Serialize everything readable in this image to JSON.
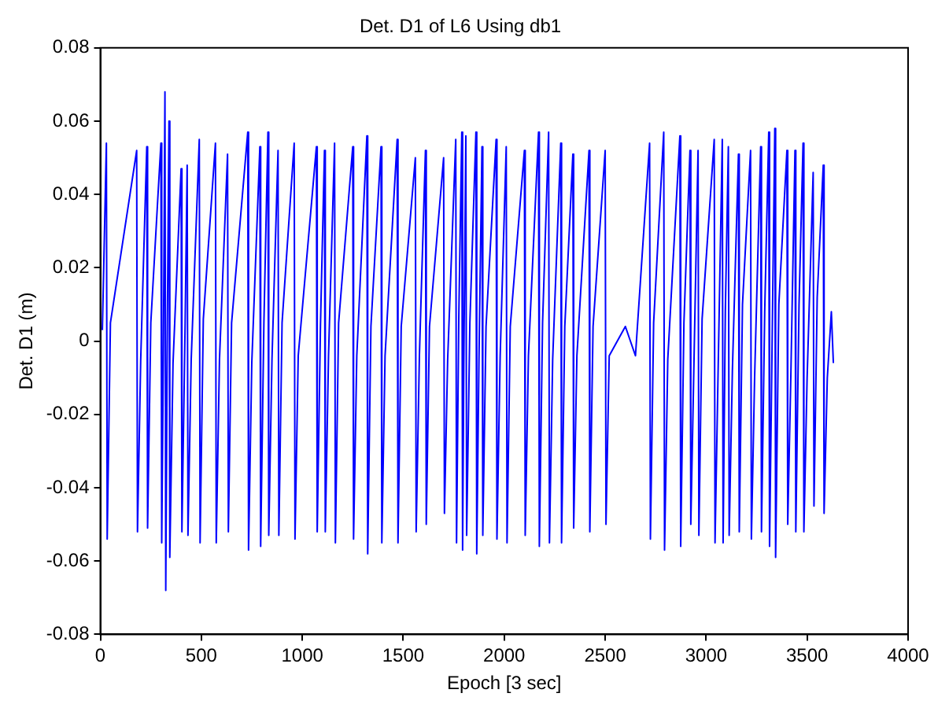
{
  "chart_data": {
    "type": "line",
    "title": "Det. D1 of L6 Using db1",
    "xlabel": "Epoch [3 sec]",
    "ylabel": "Det. D1 (m)",
    "xlim": [
      0,
      4000
    ],
    "xticks": [
      0,
      500,
      1000,
      1500,
      2000,
      2500,
      3000,
      3500,
      4000
    ],
    "ylim": [
      -0.08,
      0.08
    ],
    "yticks": [
      -0.08,
      -0.06,
      -0.04,
      -0.02,
      0,
      0.02,
      0.04,
      0.06,
      0.08
    ],
    "grid": false,
    "legend": false,
    "series": [
      {
        "color": "#0000ff",
        "x": [
          10,
          30,
          34,
          50,
          180,
          184,
          200,
          230,
          234,
          250,
          300,
          304,
          312,
          320,
          324,
          332,
          340,
          344,
          360,
          400,
          404,
          420,
          430,
          434,
          450,
          490,
          494,
          510,
          570,
          574,
          590,
          630,
          634,
          650,
          730,
          734,
          750,
          790,
          794,
          810,
          830,
          834,
          850,
          880,
          884,
          900,
          960,
          964,
          980,
          1070,
          1074,
          1090,
          1110,
          1114,
          1130,
          1160,
          1164,
          1180,
          1250,
          1254,
          1270,
          1320,
          1324,
          1340,
          1390,
          1394,
          1410,
          1470,
          1474,
          1490,
          1560,
          1564,
          1580,
          1610,
          1614,
          1630,
          1700,
          1704,
          1720,
          1760,
          1764,
          1775,
          1790,
          1794,
          1800,
          1810,
          1814,
          1830,
          1860,
          1864,
          1875,
          1890,
          1894,
          1910,
          1960,
          1964,
          1980,
          2010,
          2014,
          2030,
          2100,
          2104,
          2120,
          2170,
          2174,
          2190,
          2220,
          2224,
          2240,
          2280,
          2284,
          2300,
          2340,
          2344,
          2360,
          2420,
          2424,
          2440,
          2500,
          2504,
          2520,
          2600,
          2650,
          2720,
          2724,
          2740,
          2790,
          2794,
          2810,
          2870,
          2874,
          2890,
          2920,
          2924,
          2940,
          2960,
          2964,
          2980,
          3040,
          3044,
          3060,
          3080,
          3084,
          3095,
          3110,
          3114,
          3130,
          3160,
          3164,
          3180,
          3220,
          3224,
          3240,
          3270,
          3274,
          3290,
          3310,
          3314,
          3325,
          3340,
          3344,
          3360,
          3400,
          3404,
          3420,
          3440,
          3444,
          3460,
          3480,
          3484,
          3500,
          3530,
          3534,
          3550,
          3580,
          3584,
          3600,
          3620,
          3630
        ],
        "values": [
          0.003,
          0.054,
          -0.054,
          0.005,
          0.052,
          -0.052,
          -0.005,
          0.053,
          -0.051,
          0.005,
          0.054,
          -0.055,
          -0.005,
          0.068,
          -0.068,
          0.006,
          0.06,
          -0.059,
          -0.006,
          0.047,
          -0.052,
          0.005,
          0.048,
          -0.053,
          -0.005,
          0.055,
          -0.055,
          0.006,
          0.054,
          -0.055,
          -0.005,
          0.051,
          -0.052,
          0.005,
          0.057,
          -0.057,
          -0.006,
          0.053,
          -0.056,
          0.005,
          0.057,
          -0.053,
          -0.005,
          0.052,
          -0.053,
          0.005,
          0.054,
          -0.054,
          -0.004,
          0.053,
          -0.052,
          0.004,
          0.052,
          -0.052,
          -0.004,
          0.054,
          -0.055,
          0.005,
          0.053,
          -0.054,
          -0.004,
          0.056,
          -0.058,
          0.004,
          0.053,
          -0.055,
          -0.004,
          0.055,
          -0.055,
          0.004,
          0.05,
          -0.052,
          -0.004,
          0.052,
          -0.05,
          0.004,
          0.05,
          -0.047,
          -0.005,
          0.055,
          -0.055,
          0.006,
          0.057,
          -0.057,
          -0.006,
          0.056,
          -0.053,
          0.005,
          0.057,
          -0.058,
          -0.005,
          0.053,
          -0.053,
          0.004,
          0.055,
          -0.054,
          -0.004,
          0.053,
          -0.055,
          0.004,
          0.052,
          -0.053,
          -0.004,
          0.057,
          -0.056,
          0.005,
          0.057,
          -0.055,
          -0.005,
          0.054,
          -0.055,
          0.004,
          0.051,
          -0.051,
          -0.004,
          0.052,
          -0.052,
          0.004,
          0.052,
          -0.05,
          -0.004,
          0.004,
          -0.004,
          0.054,
          -0.054,
          0.005,
          0.057,
          -0.057,
          -0.005,
          0.056,
          -0.056,
          0.005,
          0.052,
          -0.05,
          -0.005,
          0.052,
          -0.053,
          0.006,
          0.055,
          -0.055,
          -0.006,
          0.055,
          -0.055,
          0.008,
          0.053,
          -0.053,
          -0.008,
          0.051,
          -0.052,
          0.01,
          0.052,
          -0.054,
          -0.01,
          0.053,
          -0.052,
          0.008,
          0.057,
          -0.056,
          -0.008,
          0.058,
          -0.059,
          0.01,
          0.052,
          -0.05,
          -0.008,
          0.052,
          -0.052,
          0.01,
          0.054,
          -0.052,
          -0.01,
          0.046,
          -0.045,
          0.012,
          0.048,
          -0.047,
          -0.01,
          0.008,
          -0.006
        ]
      }
    ]
  }
}
